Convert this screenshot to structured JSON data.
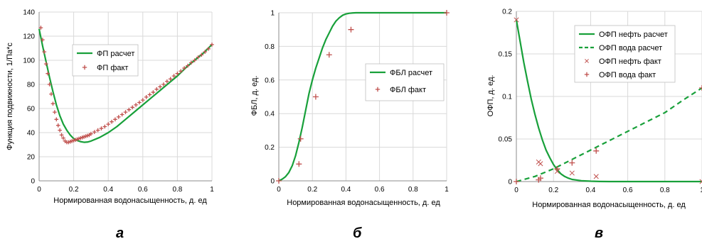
{
  "colors": {
    "line": "#18a03a",
    "marker": "#c0504d",
    "grid": "#d9d9d9",
    "axis": "#8c8c8c"
  },
  "chart_data": [
    {
      "type": "line",
      "panel_label": "а",
      "xlabel": "Нормированная водонасыщенность, д. ед",
      "ylabel": "Функция подвижности, 1/Па*с",
      "xlim": [
        0,
        1
      ],
      "ylim": [
        0,
        140
      ],
      "xticks": [
        "0",
        "0.2",
        "0.4",
        "0.6",
        "0.8",
        "1"
      ],
      "yticks": [
        "0",
        "20",
        "40",
        "60",
        "80",
        "100",
        "120",
        "140"
      ],
      "grid": true,
      "legend_position": "top-left",
      "series": [
        {
          "name": "ФП расчет",
          "style": "line",
          "x": [
            0.0,
            0.02,
            0.04,
            0.06,
            0.08,
            0.1,
            0.12,
            0.14,
            0.16,
            0.18,
            0.2,
            0.22,
            0.24,
            0.26,
            0.28,
            0.3,
            0.35,
            0.4,
            0.45,
            0.5,
            0.55,
            0.6,
            0.65,
            0.7,
            0.75,
            0.8,
            0.85,
            0.9,
            0.95,
            1.0
          ],
          "y": [
            126,
            112,
            99,
            86,
            74,
            63,
            54,
            47,
            42,
            38,
            35,
            33.5,
            32.5,
            32,
            32.2,
            33,
            36,
            40,
            45,
            51,
            57,
            63,
            69,
            75,
            81,
            87,
            94,
            100,
            106,
            113
          ]
        },
        {
          "name": "ФП факт",
          "style": "plus",
          "x": [
            0.01,
            0.02,
            0.03,
            0.04,
            0.05,
            0.06,
            0.07,
            0.08,
            0.09,
            0.1,
            0.11,
            0.12,
            0.13,
            0.14,
            0.15,
            0.16,
            0.17,
            0.18,
            0.19,
            0.2,
            0.21,
            0.22,
            0.23,
            0.24,
            0.25,
            0.26,
            0.27,
            0.28,
            0.29,
            0.3,
            0.32,
            0.34,
            0.36,
            0.38,
            0.4,
            0.42,
            0.44,
            0.46,
            0.48,
            0.5,
            0.52,
            0.54,
            0.56,
            0.58,
            0.6,
            0.62,
            0.64,
            0.66,
            0.68,
            0.7,
            0.72,
            0.74,
            0.76,
            0.78,
            0.8,
            0.82,
            0.84,
            0.86,
            0.88,
            0.9,
            0.92,
            0.94,
            0.96,
            0.98,
            1.0
          ],
          "y": [
            127,
            117,
            107,
            97,
            89,
            80,
            72,
            64,
            57,
            51,
            46,
            42,
            38,
            35.5,
            33,
            32,
            32,
            32.5,
            33,
            33.5,
            34,
            34.5,
            35,
            35.5,
            36,
            36.5,
            37,
            37.5,
            38,
            39,
            40.5,
            42,
            43.5,
            45,
            47,
            49,
            51,
            53,
            55,
            57,
            59,
            61,
            63,
            65,
            67,
            69.5,
            71.5,
            73.5,
            76,
            78,
            80,
            82.5,
            84.5,
            87,
            89,
            91,
            93.5,
            95.5,
            98,
            100,
            102.5,
            104.5,
            107,
            109.5,
            113
          ]
        }
      ]
    },
    {
      "type": "line",
      "panel_label": "б",
      "xlabel": "Нормированная водонасыщенность, д. ед",
      "ylabel": "ФБЛ, д. ед.",
      "xlim": [
        0,
        1
      ],
      "ylim": [
        0,
        1
      ],
      "xticks": [
        "0",
        "0.2",
        "0.4",
        "0.6",
        "0.8",
        "1"
      ],
      "yticks": [
        "0",
        "0.2",
        "0.4",
        "0.6",
        "0.8",
        "1"
      ],
      "grid": true,
      "legend_position": "center-right",
      "series": [
        {
          "name": "ФБЛ расчет",
          "style": "line",
          "x": [
            0.0,
            0.02,
            0.04,
            0.06,
            0.08,
            0.1,
            0.12,
            0.14,
            0.16,
            0.18,
            0.2,
            0.22,
            0.24,
            0.26,
            0.28,
            0.3,
            0.32,
            0.34,
            0.36,
            0.38,
            0.4,
            0.42,
            0.44,
            0.46,
            0.48,
            0.5,
            0.55,
            0.6,
            0.7,
            0.8,
            0.9,
            1.0
          ],
          "y": [
            0.0,
            0.01,
            0.025,
            0.05,
            0.09,
            0.15,
            0.23,
            0.32,
            0.42,
            0.52,
            0.6,
            0.67,
            0.73,
            0.79,
            0.84,
            0.88,
            0.92,
            0.95,
            0.97,
            0.985,
            0.993,
            0.997,
            0.999,
            1.0,
            1.0,
            1.0,
            1.0,
            1.0,
            1.0,
            1.0,
            1.0,
            1.0
          ]
        },
        {
          "name": "ФБЛ факт",
          "style": "plus",
          "x": [
            0.0,
            0.12,
            0.13,
            0.22,
            0.3,
            0.43,
            1.0
          ],
          "y": [
            0.0,
            0.1,
            0.25,
            0.5,
            0.75,
            0.9,
            1.0
          ]
        }
      ]
    },
    {
      "type": "line",
      "panel_label": "в",
      "xlabel": "Нормированная водонасыщенность, д. ед",
      "ylabel": "ОФП, д. ед.",
      "xlim": [
        0,
        1
      ],
      "ylim": [
        0,
        0.2
      ],
      "xticks": [
        "0",
        "0.2",
        "0.4",
        "0.6",
        "0.8",
        "1"
      ],
      "yticks": [
        "0",
        "0.05",
        "0.1",
        "0.15",
        "0.2"
      ],
      "grid": true,
      "legend_position": "top-right",
      "series": [
        {
          "name": "ОФП нефть расчет",
          "style": "line",
          "x": [
            0.0,
            0.02,
            0.04,
            0.06,
            0.08,
            0.1,
            0.12,
            0.14,
            0.16,
            0.18,
            0.2,
            0.22,
            0.24,
            0.26,
            0.28,
            0.3,
            0.35,
            0.4,
            0.45,
            0.5,
            0.6,
            0.8,
            1.0
          ],
          "y": [
            0.19,
            0.165,
            0.14,
            0.118,
            0.097,
            0.079,
            0.063,
            0.049,
            0.037,
            0.028,
            0.02,
            0.014,
            0.009,
            0.006,
            0.004,
            0.0025,
            0.001,
            0.0004,
            0.0001,
            0.0,
            0.0,
            0.0,
            0.0
          ]
        },
        {
          "name": "ОФП вода расчет",
          "style": "dashed",
          "x": [
            0.0,
            0.1,
            0.2,
            0.3,
            0.4,
            0.5,
            0.6,
            0.7,
            0.8,
            0.9,
            1.0
          ],
          "y": [
            0.0,
            0.006,
            0.015,
            0.026,
            0.037,
            0.048,
            0.059,
            0.07,
            0.081,
            0.096,
            0.11
          ]
        },
        {
          "name": "ОФП нефть факт",
          "style": "cross",
          "x": [
            0.0,
            0.12,
            0.13,
            0.22,
            0.3,
            0.43,
            1.0
          ],
          "y": [
            0.19,
            0.023,
            0.021,
            0.012,
            0.01,
            0.006,
            0.0
          ]
        },
        {
          "name": "ОФП вода факт",
          "style": "plus",
          "x": [
            0.0,
            0.12,
            0.13,
            0.22,
            0.3,
            0.43,
            1.0
          ],
          "y": [
            0.0,
            0.002,
            0.004,
            0.015,
            0.022,
            0.036,
            0.11
          ]
        }
      ]
    }
  ]
}
